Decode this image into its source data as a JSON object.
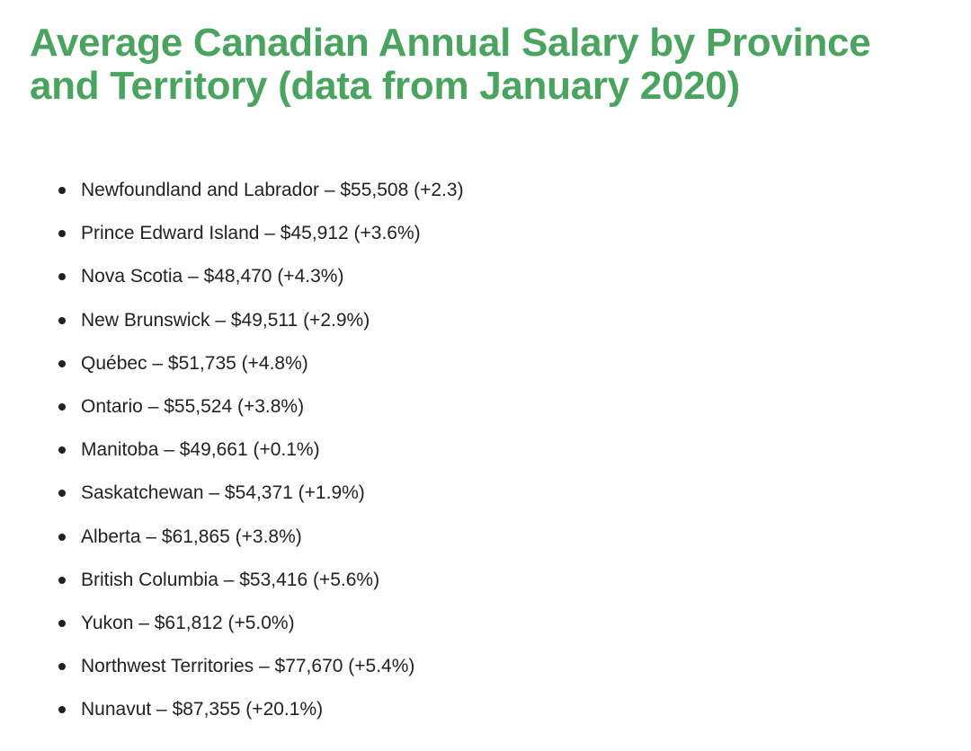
{
  "title": "Average Canadian Annual Salary by Province and Territory (data from January 2020)",
  "colors": {
    "title": "#4aa35e",
    "text": "#222222",
    "background": "#ffffff"
  },
  "items": [
    "Newfoundland and Labrador – $55,508 (+2.3)",
    "Prince Edward Island – $45,912 (+3.6%)",
    "Nova Scotia – $48,470 (+4.3%)",
    "New Brunswick – $49,511 (+2.9%)",
    "Québec – $51,735 (+4.8%)",
    "Ontario – $55,524 (+3.8%)",
    "Manitoba – $49,661 (+0.1%)",
    "Saskatchewan – $54,371 (+1.9%)",
    "Alberta – $61,865 (+3.8%)",
    "British Columbia – $53,416 (+5.6%)",
    "Yukon – $61,812 (+5.0%)",
    "Northwest Territories – $77,670 (+5.4%)",
    "Nunavut – $87,355 (+20.1%)"
  ]
}
